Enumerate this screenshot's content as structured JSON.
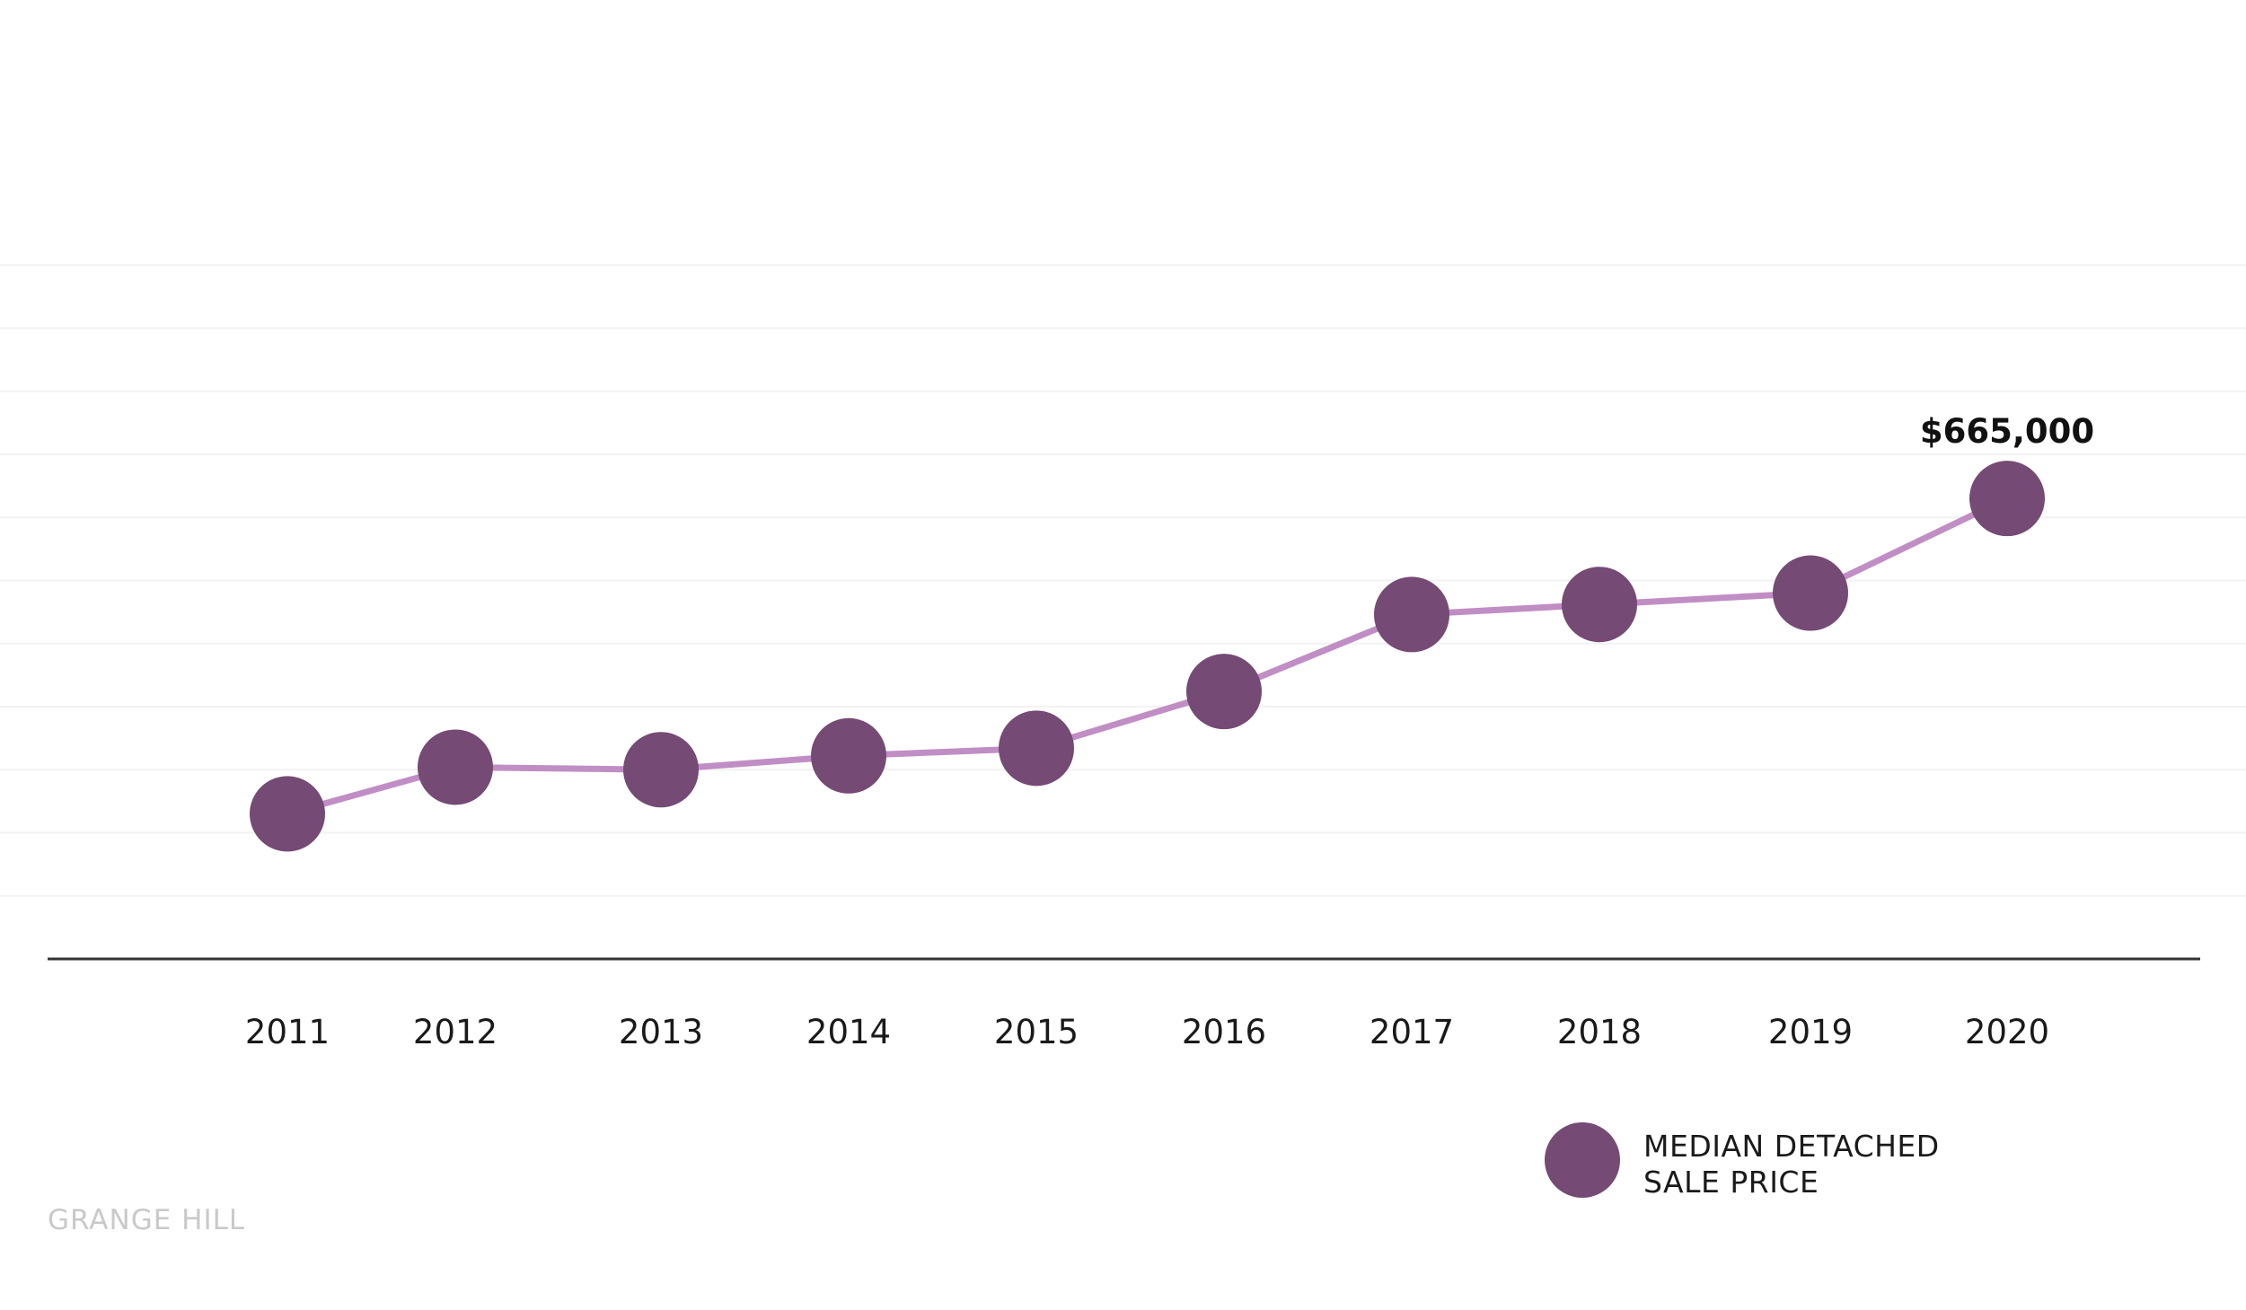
{
  "brand": "GRANGE HILL",
  "colors": {
    "line": "#c08ec4",
    "marker": "#754a74",
    "axis": "#333333",
    "grid": "#f2f2f2"
  },
  "chart_data": {
    "type": "line",
    "title": "",
    "xlabel": "",
    "ylabel": "",
    "categories": [
      "2011",
      "2012",
      "2013",
      "2014",
      "2015",
      "2016",
      "2017",
      "2018",
      "2019",
      "2020"
    ],
    "series": [
      {
        "name": "MEDIAN DETACHED SALE PRICE",
        "values": [
          415000,
          452000,
          450000,
          461000,
          467000,
          512000,
          573000,
          581000,
          590000,
          665000
        ]
      }
    ],
    "annotations": [
      {
        "category": "2020",
        "text": "$665,000"
      }
    ],
    "ylim": [
      300000,
      900000
    ],
    "grid": true,
    "legend": {
      "placement": "bottom-right",
      "lines": [
        "MEDIAN DETACHED",
        "SALE PRICE"
      ]
    }
  }
}
